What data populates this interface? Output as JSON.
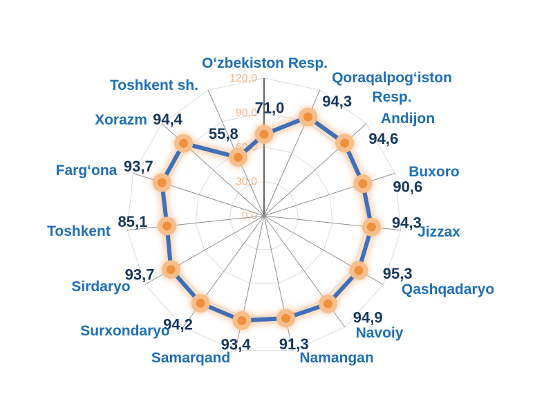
{
  "chart_data": {
    "type": "radar",
    "title": "",
    "categories": [
      "Oʻzbekiston Resp.",
      "Qoraqalpogʻiston Resp.",
      "Andijon",
      "Buxoro",
      "Jizzax",
      "Qashqadaryo",
      "Navoiy",
      "Namangan",
      "Samarqand",
      "Surxondaryo",
      "Sirdaryo",
      "Toshkent",
      "Fargʻona",
      "Xorazm",
      "Toshkent sh."
    ],
    "category_lines": [
      [
        "Oʻzbekiston Resp."
      ],
      [
        "Qoraqalpogʻiston",
        "Resp."
      ],
      [
        "Andijon"
      ],
      [
        "Buxoro"
      ],
      [
        "Jizzax"
      ],
      [
        "Qashqadaryo"
      ],
      [
        "Navoiy"
      ],
      [
        "Namangan"
      ],
      [
        "Samarqand"
      ],
      [
        "Surxondaryo"
      ],
      [
        "Sirdaryo"
      ],
      [
        "Toshkent"
      ],
      [
        "Fargʻona"
      ],
      [
        "Xorazm"
      ],
      [
        "Toshkent sh."
      ]
    ],
    "values": [
      71.0,
      94.3,
      94.6,
      90.6,
      94.3,
      95.3,
      94.9,
      91.3,
      93.4,
      94.2,
      93.7,
      85.1,
      93.7,
      94.4,
      55.8
    ],
    "value_labels": [
      "71,0",
      "94,3",
      "94,6",
      "90,6",
      "94,3",
      "95,3",
      "94,9",
      "91,3",
      "93,4",
      "94,2",
      "93,7",
      "85,1",
      "93,7",
      "94,4",
      "55,8"
    ],
    "axis_ticks": [
      "0,0",
      "30,0",
      "60,0",
      "90,0",
      "120,0"
    ],
    "axis_tick_values": [
      0,
      30,
      60,
      90,
      120
    ],
    "axis_range": [
      0,
      120
    ],
    "grid": true,
    "legend_position": "none",
    "start_angle_deg": -90,
    "direction": "clockwise",
    "colors": {
      "background": "#FFFFFF",
      "series_line": "#3F6FB7",
      "series_glow": "#F2BA8C",
      "marker_outer": "#F6BE8B",
      "marker_inner": "#EF913C",
      "category_label": "#1E6FB5",
      "value_label": "#17375E",
      "tick_label": "#F3B384",
      "grid_ring": "#DBDBDB",
      "axis_spoke": "#8F8F8F",
      "main_axis": "#6F6F6F"
    }
  }
}
